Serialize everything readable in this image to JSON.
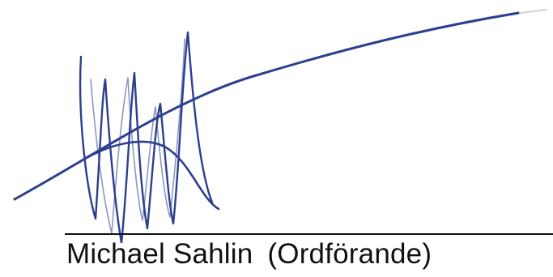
{
  "signature": {
    "ink_color": "#2c3f8f",
    "line_color": "#111111"
  },
  "caption": {
    "name": "Michael Sahlin",
    "role": "(Ordförande)"
  }
}
